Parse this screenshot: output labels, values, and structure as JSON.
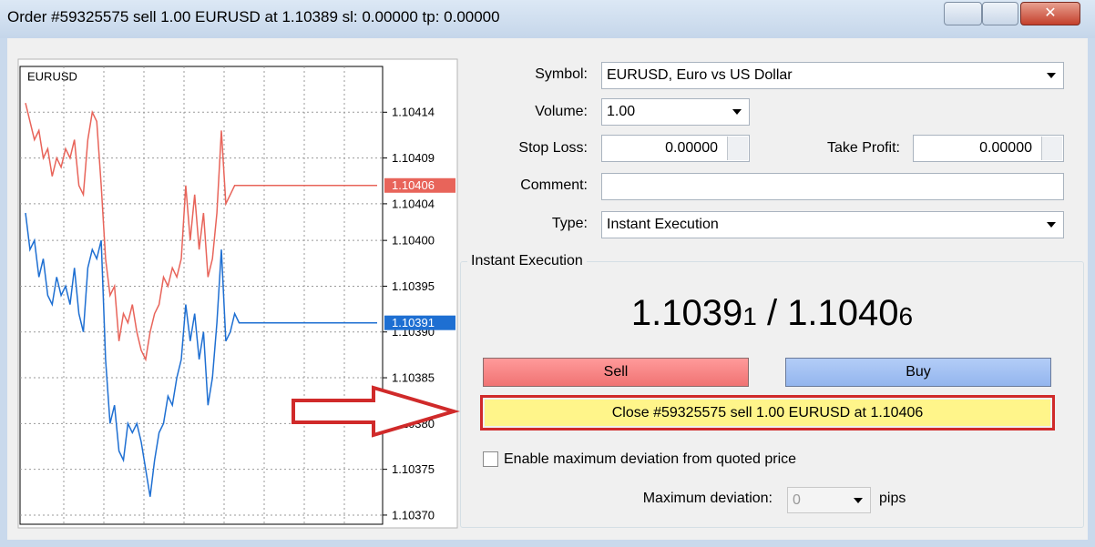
{
  "window": {
    "title": "Order #59325575 sell 1.00 EURUSD at 1.10389 sl: 0.00000 tp: 0.00000"
  },
  "chart_data": {
    "type": "line",
    "title": "EURUSD",
    "ylim": [
      1.10369,
      1.10419
    ],
    "yticks": [
      {
        "value": 1.1037,
        "label": "1.10370"
      },
      1.10375,
      {
        "value": 1.1038,
        "label": "1.10380"
      },
      1.10385,
      {
        "value": 1.1039,
        "label": "1.10390"
      },
      1.10395,
      {
        "value": 1.104,
        "label": "1.10400"
      },
      1.10404,
      1.10409,
      1.10414
    ],
    "grid": true,
    "series": [
      {
        "color": "#e8645a",
        "values": [
          1.10415,
          1.10413,
          1.10411,
          1.10412,
          1.10409,
          1.1041,
          1.10407,
          1.10409,
          1.10408,
          1.1041,
          1.10409,
          1.10411,
          1.10406,
          1.10405,
          1.10411,
          1.10414,
          1.10413,
          1.10406,
          1.10398,
          1.10394,
          1.10395,
          1.10389,
          1.10392,
          1.10391,
          1.10393,
          1.1039,
          1.10388,
          1.10387,
          1.1039,
          1.10392,
          1.10393,
          1.10396,
          1.10395,
          1.10397,
          1.10396,
          1.10398,
          1.10406,
          1.104,
          1.10405,
          1.10399,
          1.10403,
          1.10396,
          1.10398,
          1.10403,
          1.10412,
          1.10404,
          1.10405,
          1.10406,
          1.10406,
          1.10406,
          1.10406,
          1.10406,
          1.10406,
          1.10406,
          1.10406,
          1.10406,
          1.10406,
          1.10406,
          1.10406,
          1.10406,
          1.10406,
          1.10406,
          1.10406,
          1.10406,
          1.10406,
          1.10406,
          1.10406,
          1.10406,
          1.10406,
          1.10406,
          1.10406,
          1.10406,
          1.10406,
          1.10406,
          1.10406,
          1.10406,
          1.10406,
          1.10406,
          1.10406,
          1.10406
        ]
      },
      {
        "color": "#1e6fd2",
        "values": [
          1.10403,
          1.10399,
          1.104,
          1.10396,
          1.10398,
          1.10394,
          1.10393,
          1.10396,
          1.10394,
          1.10395,
          1.10393,
          1.10397,
          1.10392,
          1.1039,
          1.10397,
          1.10399,
          1.10398,
          1.104,
          1.10387,
          1.1038,
          1.10382,
          1.10377,
          1.10376,
          1.1038,
          1.10379,
          1.1038,
          1.10378,
          1.10375,
          1.10372,
          1.10376,
          1.10379,
          1.1038,
          1.10383,
          1.10382,
          1.10385,
          1.10387,
          1.10393,
          1.10389,
          1.10392,
          1.10387,
          1.1039,
          1.10382,
          1.10385,
          1.10391,
          1.10399,
          1.10389,
          1.1039,
          1.10392,
          1.10391,
          1.10391,
          1.10391,
          1.10391,
          1.10391,
          1.10391,
          1.10391,
          1.10391,
          1.10391,
          1.10391,
          1.10391,
          1.10391,
          1.10391,
          1.10391,
          1.10391,
          1.10391,
          1.10391,
          1.10391,
          1.10391,
          1.10391,
          1.10391,
          1.10391,
          1.10391,
          1.10391,
          1.10391,
          1.10391,
          1.10391,
          1.10391,
          1.10391,
          1.10391,
          1.10391,
          1.10391
        ]
      }
    ]
  },
  "form": {
    "symbol_label": "Symbol:",
    "symbol": "EURUSD, Euro vs US Dollar",
    "volume_label": "Volume:",
    "volume": "1.00",
    "stop_loss_label": "Stop Loss:",
    "stop_loss": "0.00000",
    "take_profit_label": "Take Profit:",
    "take_profit": "0.00000",
    "comment_label": "Comment:",
    "type_label": "Type:",
    "type": "Instant Execution"
  },
  "execution": {
    "group_title": "Instant Execution",
    "bid_main": "1.1039",
    "bid_pip": "1",
    "separator": "/",
    "ask_main": "1.1040",
    "ask_pip": "6",
    "sell": "Sell",
    "buy": "Buy",
    "close_button": "Close #59325575 sell 1.00 EURUSD at 1.10406",
    "deviation_checkbox": "Enable maximum deviation from quoted price",
    "deviation_label": "Maximum deviation:",
    "deviation_value": "0",
    "deviation_unit": "pips"
  }
}
